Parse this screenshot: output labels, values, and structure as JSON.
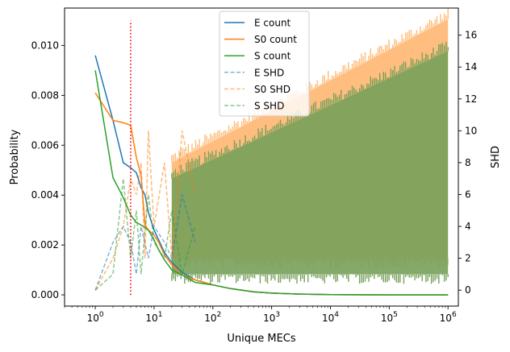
{
  "chart_data": {
    "type": "line",
    "xlabel": "Unique MECs",
    "ylabel_left": "Probability",
    "ylabel_right": "SHD",
    "x_scale": "log",
    "xlim": [
      0.3,
      1500000
    ],
    "ylim_left": [
      -0.00045,
      0.0115
    ],
    "ylim_right": [
      -1,
      17.7
    ],
    "x_major_ticks": [
      1,
      10,
      100,
      1000,
      10000,
      100000,
      1000000
    ],
    "x_tick_labels": [
      "10^0",
      "10^1",
      "10^2",
      "10^3",
      "10^4",
      "10^5",
      "10^6"
    ],
    "y_left_ticks": [
      0.0,
      0.002,
      0.004,
      0.006,
      0.008,
      0.01
    ],
    "y_left_tick_labels": [
      "0.000",
      "0.002",
      "0.004",
      "0.006",
      "0.008",
      "0.010"
    ],
    "y_right_ticks": [
      0,
      2,
      4,
      6,
      8,
      10,
      12,
      14,
      16
    ],
    "y_right_tick_labels": [
      "0",
      "2",
      "4",
      "6",
      "8",
      "10",
      "12",
      "14",
      "16"
    ],
    "vline": {
      "x": 4,
      "ymin": 0,
      "ymax": 0.011,
      "color": "#ff0000",
      "style": "dotted"
    },
    "series": [
      {
        "name": "E count",
        "axis": "left",
        "style": "solid",
        "color": "#1f77b4",
        "x": [
          1,
          2,
          3,
          4,
          5,
          6,
          7,
          8,
          10,
          12,
          15,
          20,
          30,
          50,
          100,
          200,
          500,
          1000,
          3000,
          10000,
          100000,
          1000000
        ],
        "values": [
          0.0096,
          0.007,
          0.0053,
          0.0051,
          0.0049,
          0.0043,
          0.004,
          0.0033,
          0.0026,
          0.0022,
          0.0017,
          0.0013,
          0.0009,
          0.0006,
          0.0004,
          0.00025,
          0.00012,
          7e-05,
          3e-05,
          1e-05,
          0.0,
          0.0
        ]
      },
      {
        "name": "S0 count",
        "axis": "left",
        "style": "solid",
        "color": "#ff7f0e",
        "x": [
          1,
          2,
          3,
          4,
          5,
          6,
          7,
          8,
          10,
          12,
          15,
          20,
          30,
          50,
          100,
          200,
          500,
          1000,
          3000,
          10000,
          100000,
          1000000
        ],
        "values": [
          0.0081,
          0.007,
          0.0069,
          0.0068,
          0.0055,
          0.0048,
          0.0028,
          0.0026,
          0.0024,
          0.0021,
          0.0016,
          0.0012,
          0.0008,
          0.0006,
          0.0004,
          0.00025,
          0.00012,
          7e-05,
          3e-05,
          1e-05,
          0.0,
          0.0
        ]
      },
      {
        "name": "S count",
        "axis": "left",
        "style": "solid",
        "color": "#2ca02c",
        "x": [
          1,
          2,
          3,
          4,
          5,
          6,
          7,
          8,
          10,
          12,
          15,
          20,
          30,
          50,
          100,
          200,
          500,
          1000,
          3000,
          10000,
          100000,
          1000000
        ],
        "values": [
          0.009,
          0.0047,
          0.0039,
          0.0032,
          0.0029,
          0.0028,
          0.0027,
          0.0026,
          0.0022,
          0.0018,
          0.0014,
          0.001,
          0.0008,
          0.0005,
          0.0004,
          0.00025,
          0.00012,
          7e-05,
          3e-05,
          1e-05,
          0.0,
          0.0
        ]
      },
      {
        "name": "E SHD",
        "axis": "right",
        "style": "dashed",
        "color": "#1f77b4",
        "x": [
          1,
          2,
          3,
          4,
          5,
          6,
          8,
          10,
          15,
          20,
          30,
          50
        ],
        "values": [
          0,
          3,
          4,
          3,
          1,
          4,
          2,
          4,
          3,
          2,
          6,
          3
        ]
      },
      {
        "name": "S0 SHD",
        "axis": "right",
        "style": "dashed",
        "color": "#ff7f0e",
        "x": [
          1,
          2,
          3,
          4,
          5,
          6,
          7,
          8,
          10,
          15,
          20,
          30,
          50
        ],
        "values": [
          0,
          2,
          4,
          7,
          6,
          8,
          2,
          10,
          4,
          8,
          2,
          10,
          6
        ]
      },
      {
        "name": "S SHD",
        "axis": "right",
        "style": "dashed",
        "color": "#2ca02c",
        "x": [
          1,
          2,
          3,
          4,
          5,
          6,
          8,
          10,
          15,
          20,
          30,
          50
        ],
        "values": [
          0,
          1,
          7,
          2,
          5,
          1,
          6,
          3,
          2,
          5,
          1,
          4
        ]
      }
    ],
    "shd_bands": [
      {
        "name": "S0 SHD",
        "color": "#ffbb78",
        "x": [
          20,
          1000000
        ],
        "min": [
          2,
          2
        ],
        "max": [
          8,
          17
        ]
      },
      {
        "name": "S SHD",
        "color": "#77a05a",
        "x": [
          20,
          1000000
        ],
        "min": [
          1,
          1
        ],
        "max": [
          7,
          15
        ]
      }
    ],
    "legend_position": "top-center"
  }
}
